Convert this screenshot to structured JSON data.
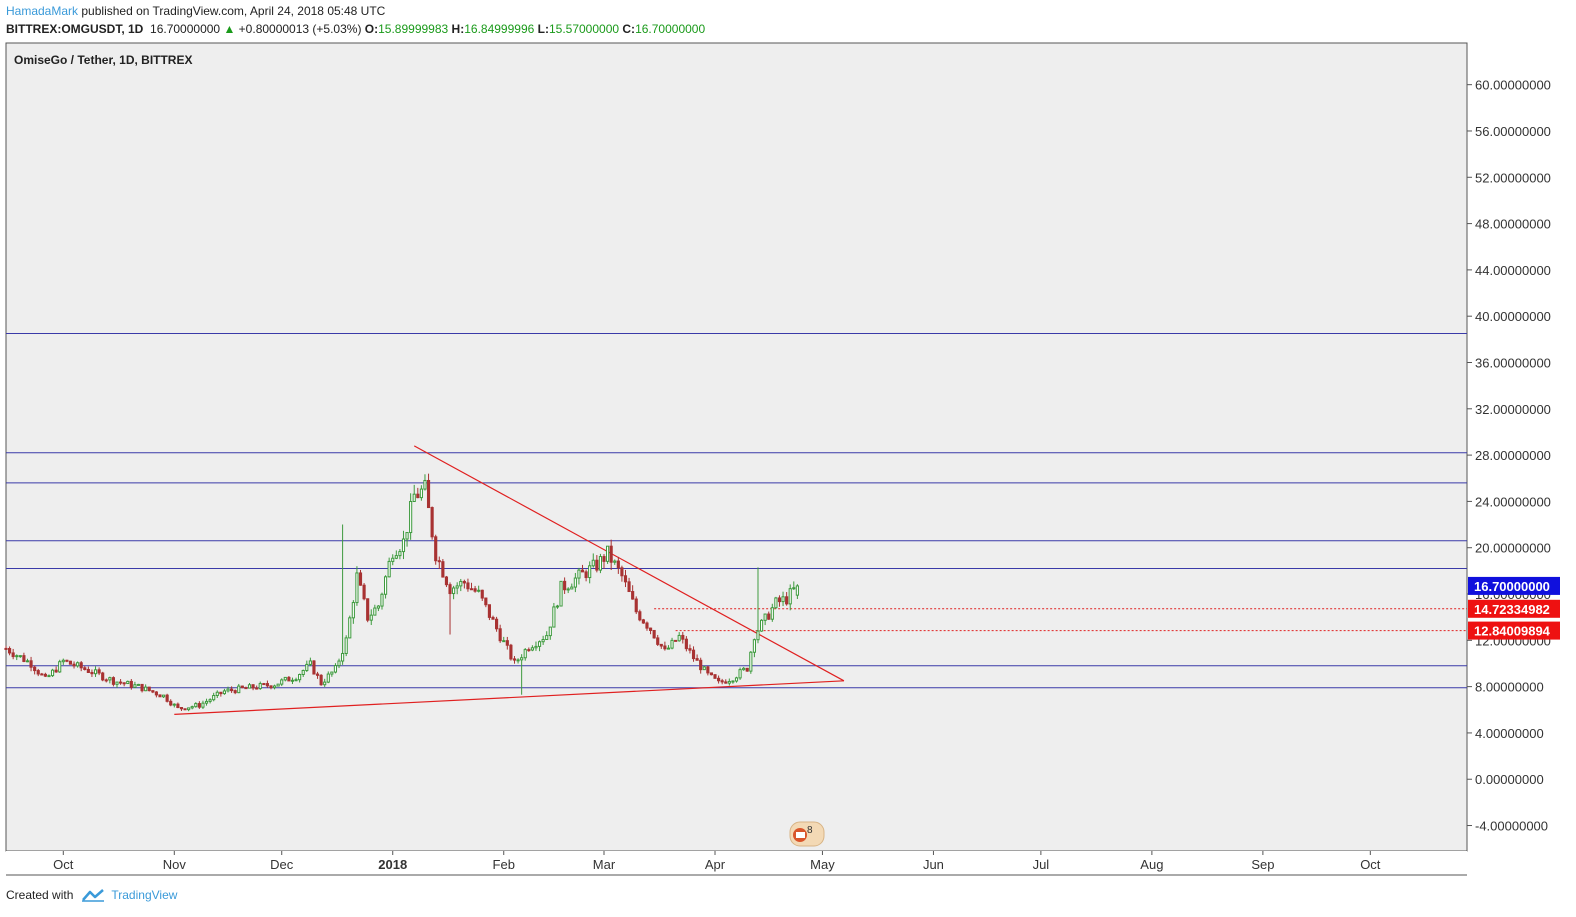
{
  "header": {
    "author": "HamadaMark",
    "published_text": "published on TradingView.com, April 24, 2018 05:48 UTC",
    "symbol": "BITTREX:OMGUSDT, 1D",
    "last": "16.70000000",
    "change_arrow": "▲",
    "change": "+0.80000013 (+5.03%)",
    "o_label": "O:",
    "o_value": "15.89999983",
    "h_label": "H:",
    "h_value": "16.84999996",
    "l_label": "L:",
    "l_value": "15.57000000",
    "c_label": "C:",
    "c_value": "16.70000000"
  },
  "chart_title": "OmiseGo / Tether, 1D, BITTREX",
  "footer": {
    "created_with": "Created with",
    "brand": "TradingView"
  },
  "colors": {
    "background": "#eeeeee",
    "up_candle": "#3d9a3d",
    "down_candle": "#a83232",
    "horizontal_line": "#3a3aa8",
    "trendline": "#e02020",
    "last_price_badge": "#1010dd",
    "level_badge": "#ee1111"
  },
  "chart_data": {
    "type": "candlestick",
    "title": "OmiseGo / Tether, 1D, BITTREX",
    "y_ticks": [
      "60.00000000",
      "56.00000000",
      "52.00000000",
      "48.00000000",
      "44.00000000",
      "40.00000000",
      "36.00000000",
      "32.00000000",
      "28.00000000",
      "24.00000000",
      "20.00000000",
      "16.00000000",
      "12.00000000",
      "8.00000000",
      "4.00000000",
      "0.00000000",
      "-4.00000000"
    ],
    "y_tick_values": [
      60,
      56,
      52,
      48,
      44,
      40,
      36,
      32,
      28,
      24,
      20,
      16,
      12,
      8,
      4,
      0,
      -4
    ],
    "ylim": [
      -6.2,
      63.6
    ],
    "x_ticks": [
      "Oct",
      "Nov",
      "Dec",
      "2018",
      "Feb",
      "Mar",
      "Apr",
      "May",
      "Jun",
      "Jul",
      "Aug",
      "Sep",
      "Oct"
    ],
    "x_tick_dates": [
      "2017-10-01",
      "2017-11-01",
      "2017-12-01",
      "2018-01-01",
      "2018-02-01",
      "2018-03-01",
      "2018-04-01",
      "2018-05-01",
      "2018-06-01",
      "2018-07-01",
      "2018-08-01",
      "2018-09-01",
      "2018-10-01"
    ],
    "xlim": [
      "2017-09-15",
      "2018-10-28"
    ],
    "horizontal_levels": [
      38.5,
      28.2,
      25.6,
      20.6,
      18.2,
      9.8,
      7.9
    ],
    "dotted_levels": [
      {
        "value": 14.72334982,
        "label": "14.72334982",
        "from": "2018-03-15"
      },
      {
        "value": 12.84009894,
        "label": "12.84009894",
        "from": "2018-03-21"
      }
    ],
    "last_price": {
      "value": 16.7,
      "label": "16.70000000"
    },
    "trendlines": [
      {
        "from": {
          "date": "2018-01-07",
          "price": 28.8
        },
        "to": {
          "date": "2018-05-07",
          "price": 8.5
        }
      },
      {
        "from": {
          "date": "2017-11-01",
          "price": 5.6
        },
        "to": {
          "date": "2018-05-07",
          "price": 8.5
        }
      }
    ],
    "price_path": [
      [
        "2017-09-15",
        11.3
      ],
      [
        "2017-09-22",
        10.0
      ],
      [
        "2017-09-26",
        8.6
      ],
      [
        "2017-10-01",
        10.2
      ],
      [
        "2017-10-08",
        9.4
      ],
      [
        "2017-10-15",
        8.5
      ],
      [
        "2017-10-22",
        8.0
      ],
      [
        "2017-10-29",
        7.2
      ],
      [
        "2017-11-02",
        6.1
      ],
      [
        "2017-11-08",
        6.4
      ],
      [
        "2017-11-15",
        7.6
      ],
      [
        "2017-11-22",
        7.9
      ],
      [
        "2017-11-29",
        8.2
      ],
      [
        "2017-12-05",
        8.9
      ],
      [
        "2017-12-09",
        9.9
      ],
      [
        "2017-12-12",
        8.3
      ],
      [
        "2017-12-16",
        9.5
      ],
      [
        "2017-12-19",
        12.0
      ],
      [
        "2017-12-22",
        17.5
      ],
      [
        "2017-12-25",
        14.0
      ],
      [
        "2017-12-28",
        15.0
      ],
      [
        "2018-01-01",
        19.8
      ],
      [
        "2018-01-04",
        20.5
      ],
      [
        "2018-01-07",
        24.5
      ],
      [
        "2018-01-10",
        25.0
      ],
      [
        "2018-01-13",
        19.5
      ],
      [
        "2018-01-17",
        16.5
      ],
      [
        "2018-01-21",
        17.0
      ],
      [
        "2018-01-25",
        16.0
      ],
      [
        "2018-01-30",
        13.0
      ],
      [
        "2018-02-04",
        10.0
      ],
      [
        "2018-02-08",
        11.5
      ],
      [
        "2018-02-13",
        12.5
      ],
      [
        "2018-02-17",
        16.5
      ],
      [
        "2018-02-22",
        17.5
      ],
      [
        "2018-02-27",
        18.5
      ],
      [
        "2018-03-02",
        19.5
      ],
      [
        "2018-03-06",
        17.5
      ],
      [
        "2018-03-10",
        14.5
      ],
      [
        "2018-03-14",
        13.0
      ],
      [
        "2018-03-18",
        11.0
      ],
      [
        "2018-03-22",
        12.3
      ],
      [
        "2018-03-26",
        10.5
      ],
      [
        "2018-03-30",
        9.0
      ],
      [
        "2018-04-02",
        8.3
      ],
      [
        "2018-04-06",
        8.8
      ],
      [
        "2018-04-10",
        9.6
      ],
      [
        "2018-04-12",
        12.5
      ],
      [
        "2018-04-15",
        13.8
      ],
      [
        "2018-04-18",
        15.2
      ],
      [
        "2018-04-21",
        15.6
      ],
      [
        "2018-04-24",
        16.7
      ]
    ],
    "wicks": [
      {
        "date": "2017-12-18",
        "high": 22.0
      },
      {
        "date": "2018-04-13",
        "high": 18.3
      },
      {
        "date": "2018-02-06",
        "low": 7.3
      },
      {
        "date": "2018-01-17",
        "low": 12.5
      }
    ],
    "last_candle": {
      "date": "2018-04-24",
      "open": 15.89999983,
      "high": 16.84999996,
      "low": 15.57,
      "close": 16.7
    }
  }
}
